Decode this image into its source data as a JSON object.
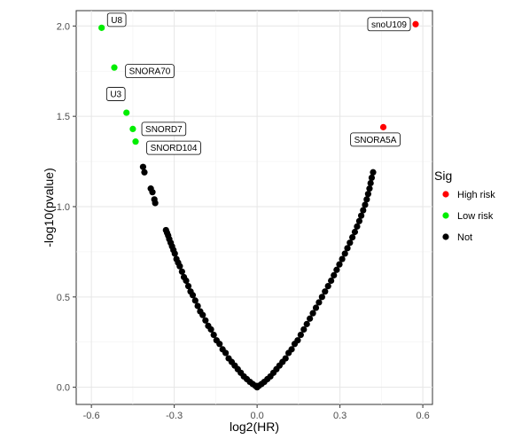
{
  "chart_data": {
    "type": "scatter",
    "xlabel": "log2(HR)",
    "ylabel": "-log10(pvalue)",
    "xlim": [
      -0.6,
      0.6
    ],
    "ylim": [
      0,
      2.0
    ],
    "x_ticks": [
      -0.6,
      -0.3,
      0.0,
      0.3,
      0.6
    ],
    "x_tick_labels": [
      "-0.6",
      "-0.3",
      "0.0",
      "0.3",
      "0.6"
    ],
    "y_ticks": [
      0.0,
      0.5,
      1.0,
      1.5,
      2.0
    ],
    "y_tick_labels": [
      "0.0",
      "0.5",
      "1.0",
      "1.5",
      "2.0"
    ],
    "grid": true,
    "legend": {
      "title": "Sig",
      "placement": "right",
      "entries": [
        {
          "label": "High risk",
          "color": "#ff0000"
        },
        {
          "label": "Low risk",
          "color": "#00ee00"
        },
        {
          "label": "Not",
          "color": "#000000"
        }
      ]
    },
    "series": [
      {
        "name": "High risk",
        "color": "#ff0000",
        "points": [
          {
            "x": 0.574,
            "y": 2.01,
            "label": "snoU109"
          },
          {
            "x": 0.457,
            "y": 1.44,
            "label": "SNORA5A"
          }
        ]
      },
      {
        "name": "Low risk",
        "color": "#00ee00",
        "points": [
          {
            "x": -0.563,
            "y": 1.99,
            "label": "U8"
          },
          {
            "x": -0.517,
            "y": 1.77,
            "label": "SNORA70"
          },
          {
            "x": -0.473,
            "y": 1.52,
            "label": "U3"
          },
          {
            "x": -0.45,
            "y": 1.43,
            "label": "SNORD7"
          },
          {
            "x": -0.44,
            "y": 1.36,
            "label": "SNORD104"
          }
        ]
      },
      {
        "name": "Not",
        "color": "#000000",
        "points": [
          {
            "x": -0.413,
            "y": 1.22
          },
          {
            "x": -0.408,
            "y": 1.19
          },
          {
            "x": -0.385,
            "y": 1.1
          },
          {
            "x": -0.379,
            "y": 1.08
          },
          {
            "x": -0.372,
            "y": 1.04
          },
          {
            "x": -0.369,
            "y": 1.02
          },
          {
            "x": -0.33,
            "y": 0.87
          },
          {
            "x": -0.326,
            "y": 0.855
          },
          {
            "x": -0.322,
            "y": 0.84
          },
          {
            "x": -0.318,
            "y": 0.82
          },
          {
            "x": -0.313,
            "y": 0.8
          },
          {
            "x": -0.308,
            "y": 0.78
          },
          {
            "x": -0.303,
            "y": 0.76
          },
          {
            "x": -0.298,
            "y": 0.74
          },
          {
            "x": -0.292,
            "y": 0.71
          },
          {
            "x": -0.286,
            "y": 0.69
          },
          {
            "x": -0.28,
            "y": 0.67
          },
          {
            "x": -0.272,
            "y": 0.64
          },
          {
            "x": -0.265,
            "y": 0.61
          },
          {
            "x": -0.257,
            "y": 0.59
          },
          {
            "x": -0.249,
            "y": 0.56
          },
          {
            "x": -0.241,
            "y": 0.53
          },
          {
            "x": -0.233,
            "y": 0.51
          },
          {
            "x": -0.224,
            "y": 0.48
          },
          {
            "x": -0.215,
            "y": 0.45
          },
          {
            "x": -0.206,
            "y": 0.42
          },
          {
            "x": -0.197,
            "y": 0.4
          },
          {
            "x": -0.187,
            "y": 0.37
          },
          {
            "x": -0.177,
            "y": 0.34
          },
          {
            "x": -0.167,
            "y": 0.32
          },
          {
            "x": -0.157,
            "y": 0.29
          },
          {
            "x": -0.147,
            "y": 0.26
          },
          {
            "x": -0.136,
            "y": 0.24
          },
          {
            "x": -0.125,
            "y": 0.21
          },
          {
            "x": -0.114,
            "y": 0.19
          },
          {
            "x": -0.103,
            "y": 0.16
          },
          {
            "x": -0.092,
            "y": 0.14
          },
          {
            "x": -0.081,
            "y": 0.12
          },
          {
            "x": -0.07,
            "y": 0.1
          },
          {
            "x": -0.059,
            "y": 0.08
          },
          {
            "x": -0.048,
            "y": 0.06
          },
          {
            "x": -0.037,
            "y": 0.045
          },
          {
            "x": -0.026,
            "y": 0.03
          },
          {
            "x": -0.016,
            "y": 0.018
          },
          {
            "x": -0.006,
            "y": 0.008
          },
          {
            "x": 0.0,
            "y": 0.0
          },
          {
            "x": 0.006,
            "y": 0.008
          },
          {
            "x": 0.016,
            "y": 0.018
          },
          {
            "x": 0.026,
            "y": 0.03
          },
          {
            "x": 0.037,
            "y": 0.045
          },
          {
            "x": 0.048,
            "y": 0.06
          },
          {
            "x": 0.059,
            "y": 0.08
          },
          {
            "x": 0.07,
            "y": 0.1
          },
          {
            "x": 0.081,
            "y": 0.12
          },
          {
            "x": 0.092,
            "y": 0.14
          },
          {
            "x": 0.103,
            "y": 0.16
          },
          {
            "x": 0.114,
            "y": 0.19
          },
          {
            "x": 0.125,
            "y": 0.21
          },
          {
            "x": 0.136,
            "y": 0.24
          },
          {
            "x": 0.147,
            "y": 0.26
          },
          {
            "x": 0.158,
            "y": 0.29
          },
          {
            "x": 0.169,
            "y": 0.32
          },
          {
            "x": 0.18,
            "y": 0.35
          },
          {
            "x": 0.191,
            "y": 0.38
          },
          {
            "x": 0.202,
            "y": 0.41
          },
          {
            "x": 0.213,
            "y": 0.44
          },
          {
            "x": 0.224,
            "y": 0.47
          },
          {
            "x": 0.235,
            "y": 0.5
          },
          {
            "x": 0.246,
            "y": 0.53
          },
          {
            "x": 0.257,
            "y": 0.56
          },
          {
            "x": 0.268,
            "y": 0.59
          },
          {
            "x": 0.278,
            "y": 0.62
          },
          {
            "x": 0.288,
            "y": 0.65
          },
          {
            "x": 0.298,
            "y": 0.68
          },
          {
            "x": 0.308,
            "y": 0.71
          },
          {
            "x": 0.318,
            "y": 0.74
          },
          {
            "x": 0.327,
            "y": 0.77
          },
          {
            "x": 0.336,
            "y": 0.8
          },
          {
            "x": 0.345,
            "y": 0.83
          },
          {
            "x": 0.354,
            "y": 0.86
          },
          {
            "x": 0.362,
            "y": 0.89
          },
          {
            "x": 0.37,
            "y": 0.92
          },
          {
            "x": 0.377,
            "y": 0.95
          },
          {
            "x": 0.384,
            "y": 0.98
          },
          {
            "x": 0.391,
            "y": 1.01
          },
          {
            "x": 0.397,
            "y": 1.04
          },
          {
            "x": 0.402,
            "y": 1.07
          },
          {
            "x": 0.407,
            "y": 1.1
          },
          {
            "x": 0.411,
            "y": 1.13
          },
          {
            "x": 0.415,
            "y": 1.16
          },
          {
            "x": 0.42,
            "y": 1.19
          }
        ]
      }
    ]
  }
}
